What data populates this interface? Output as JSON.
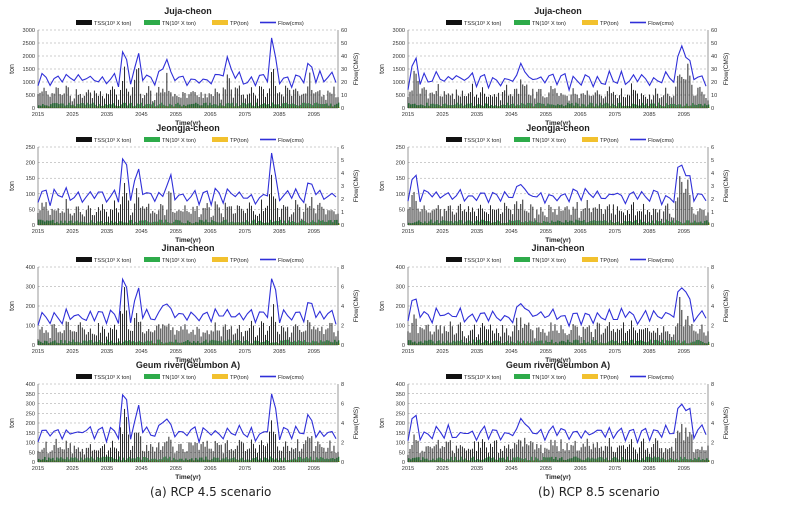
{
  "figure": {
    "caption_left": "(a) RCP 4.5 scenario",
    "caption_right": "(b) RCP 8.5 scenario"
  },
  "legend": {
    "tss": "TSS(10³ X ton)",
    "tn": "TN(10² X ton)",
    "tp": "TP(ton)",
    "flow": "Flow(cms)"
  },
  "colors": {
    "tss": "#111111",
    "tn": "#2eab4a",
    "tp": "#f2c12e",
    "flow": "#2f2fd8",
    "grid": "#999999"
  },
  "chart_data": [
    {
      "type": "bar+line",
      "scenario": "RCP 4.5",
      "title": "Juja-cheon",
      "xlabel": "Time(yr)",
      "ylabel": "ton",
      "y2label": "Flow(CMS)",
      "ylim": [
        0,
        3000
      ],
      "yticks": [
        0,
        500,
        1000,
        1500,
        2000,
        2500,
        3000
      ],
      "y2lim": [
        0,
        60
      ],
      "y2ticks": [
        0,
        10,
        20,
        30,
        40,
        50,
        60
      ],
      "xticks": [
        2015,
        2025,
        2035,
        2045,
        2055,
        2065,
        2075,
        2085,
        2095
      ],
      "xrange": [
        2015,
        2102
      ],
      "seed": 11,
      "events": [
        [
          2040,
          1.0
        ],
        [
          2044,
          0.75
        ],
        [
          2083,
          1.35
        ],
        [
          2094,
          0.55
        ],
        [
          2052,
          0.6
        ],
        [
          2070,
          0.65
        ]
      ]
    },
    {
      "type": "bar+line",
      "scenario": "RCP 8.5",
      "title": "Juja-cheon",
      "xlabel": "Time(yr)",
      "ylabel": "ton",
      "y2label": "Flow(CMS)",
      "ylim": [
        0,
        3000
      ],
      "yticks": [
        0,
        500,
        1000,
        1500,
        2000,
        2500,
        3000
      ],
      "y2lim": [
        0,
        60
      ],
      "y2ticks": [
        0,
        10,
        20,
        30,
        40,
        50,
        60
      ],
      "xticks": [
        2015,
        2025,
        2035,
        2045,
        2055,
        2065,
        2075,
        2085,
        2095
      ],
      "xrange": [
        2015,
        2102
      ],
      "seed": 23,
      "events": [
        [
          2017,
          0.6
        ],
        [
          2094,
          1.15
        ],
        [
          2096,
          0.9
        ],
        [
          2048,
          0.5
        ]
      ]
    },
    {
      "type": "bar+line",
      "scenario": "RCP 4.5",
      "title": "Jeongja-cheon",
      "xlabel": "Time(yr)",
      "ylabel": "ton",
      "y2label": "Flow(CMS)",
      "ylim": [
        0,
        250
      ],
      "yticks": [
        0,
        50,
        100,
        150,
        200,
        250
      ],
      "y2lim": [
        0,
        6
      ],
      "y2ticks": [
        0,
        1,
        2,
        3,
        4,
        5,
        6
      ],
      "xticks": [
        2015,
        2025,
        2035,
        2045,
        2055,
        2065,
        2075,
        2085,
        2095
      ],
      "xrange": [
        2015,
        2102
      ],
      "seed": 37,
      "events": [
        [
          2040,
          1.35
        ],
        [
          2044,
          0.8
        ],
        [
          2083,
          1.35
        ],
        [
          2094,
          0.55
        ],
        [
          2053,
          0.6
        ]
      ]
    },
    {
      "type": "bar+line",
      "scenario": "RCP 8.5",
      "title": "Jeongja-cheon",
      "xlabel": "Time(yr)",
      "ylabel": "ton",
      "y2label": "Flow(CMS)",
      "ylim": [
        0,
        250
      ],
      "yticks": [
        0,
        50,
        100,
        150,
        200,
        250
      ],
      "y2lim": [
        0,
        6
      ],
      "y2ticks": [
        0,
        1,
        2,
        3,
        4,
        5,
        6
      ],
      "xticks": [
        2015,
        2025,
        2035,
        2045,
        2055,
        2065,
        2075,
        2085,
        2095
      ],
      "xrange": [
        2015,
        2102
      ],
      "seed": 41,
      "events": [
        [
          2017,
          0.6
        ],
        [
          2094,
          1.2
        ],
        [
          2096,
          0.9
        ],
        [
          2048,
          0.5
        ]
      ]
    },
    {
      "type": "bar+line",
      "scenario": "RCP 4.5",
      "title": "Jinan-cheon",
      "xlabel": "Time(yr)",
      "ylabel": "ton",
      "y2label": "Flow(CMS)",
      "ylim": [
        0,
        400
      ],
      "yticks": [
        0,
        100,
        200,
        300,
        400
      ],
      "y2lim": [
        0,
        8
      ],
      "y2ticks": [
        0,
        2,
        4,
        6,
        8
      ],
      "xticks": [
        2015,
        2025,
        2035,
        2045,
        2055,
        2065,
        2075,
        2085,
        2095
      ],
      "xrange": [
        2015,
        2102
      ],
      "seed": 53,
      "events": [
        [
          2040,
          1.4
        ],
        [
          2044,
          0.8
        ],
        [
          2083,
          1.3
        ],
        [
          2094,
          0.6
        ],
        [
          2052,
          0.6
        ]
      ]
    },
    {
      "type": "bar+line",
      "scenario": "RCP 8.5",
      "title": "Jinan-cheon",
      "xlabel": "Time(yr)",
      "ylabel": "ton",
      "y2label": "Flow(CMS)",
      "ylim": [
        0,
        400
      ],
      "yticks": [
        0,
        100,
        200,
        300,
        400
      ],
      "y2lim": [
        0,
        8
      ],
      "y2ticks": [
        0,
        2,
        4,
        6,
        8
      ],
      "xticks": [
        2015,
        2025,
        2035,
        2045,
        2055,
        2065,
        2075,
        2085,
        2095
      ],
      "xrange": [
        2015,
        2102
      ],
      "seed": 67,
      "events": [
        [
          2017,
          0.6
        ],
        [
          2094,
          1.1
        ],
        [
          2096,
          0.85
        ],
        [
          2048,
          0.5
        ]
      ]
    },
    {
      "type": "bar+line",
      "scenario": "RCP 4.5",
      "title": "Geum river(Geumbon A)",
      "xlabel": "Time(yr)",
      "ylabel": "ton",
      "y2label": "Flow(CMS)",
      "ylim": [
        0,
        400
      ],
      "yticks": [
        0,
        50,
        100,
        150,
        200,
        250,
        300,
        350,
        400
      ],
      "y2lim": [
        0,
        8
      ],
      "y2ticks": [
        0,
        2,
        4,
        6,
        8
      ],
      "xticks": [
        2015,
        2025,
        2035,
        2045,
        2055,
        2065,
        2075,
        2085,
        2095
      ],
      "xrange": [
        2015,
        2102
      ],
      "seed": 79,
      "events": [
        [
          2040,
          1.4
        ],
        [
          2044,
          0.8
        ],
        [
          2083,
          1.3
        ],
        [
          2094,
          0.6
        ],
        [
          2052,
          0.6
        ]
      ]
    },
    {
      "type": "bar+line",
      "scenario": "RCP 8.5",
      "title": "Geum river(Geumbon A)",
      "xlabel": "Time(yr)",
      "ylabel": "ton",
      "y2label": "Flow(CMS)",
      "ylim": [
        0,
        400
      ],
      "yticks": [
        0,
        50,
        100,
        150,
        200,
        250,
        300,
        350,
        400
      ],
      "y2lim": [
        0,
        8
      ],
      "y2ticks": [
        0,
        2,
        4,
        6,
        8
      ],
      "xticks": [
        2015,
        2025,
        2035,
        2045,
        2055,
        2065,
        2075,
        2085,
        2095
      ],
      "xrange": [
        2015,
        2102
      ],
      "seed": 83,
      "events": [
        [
          2017,
          0.6
        ],
        [
          2094,
          1.15
        ],
        [
          2096,
          0.9
        ],
        [
          2048,
          0.5
        ]
      ]
    }
  ]
}
